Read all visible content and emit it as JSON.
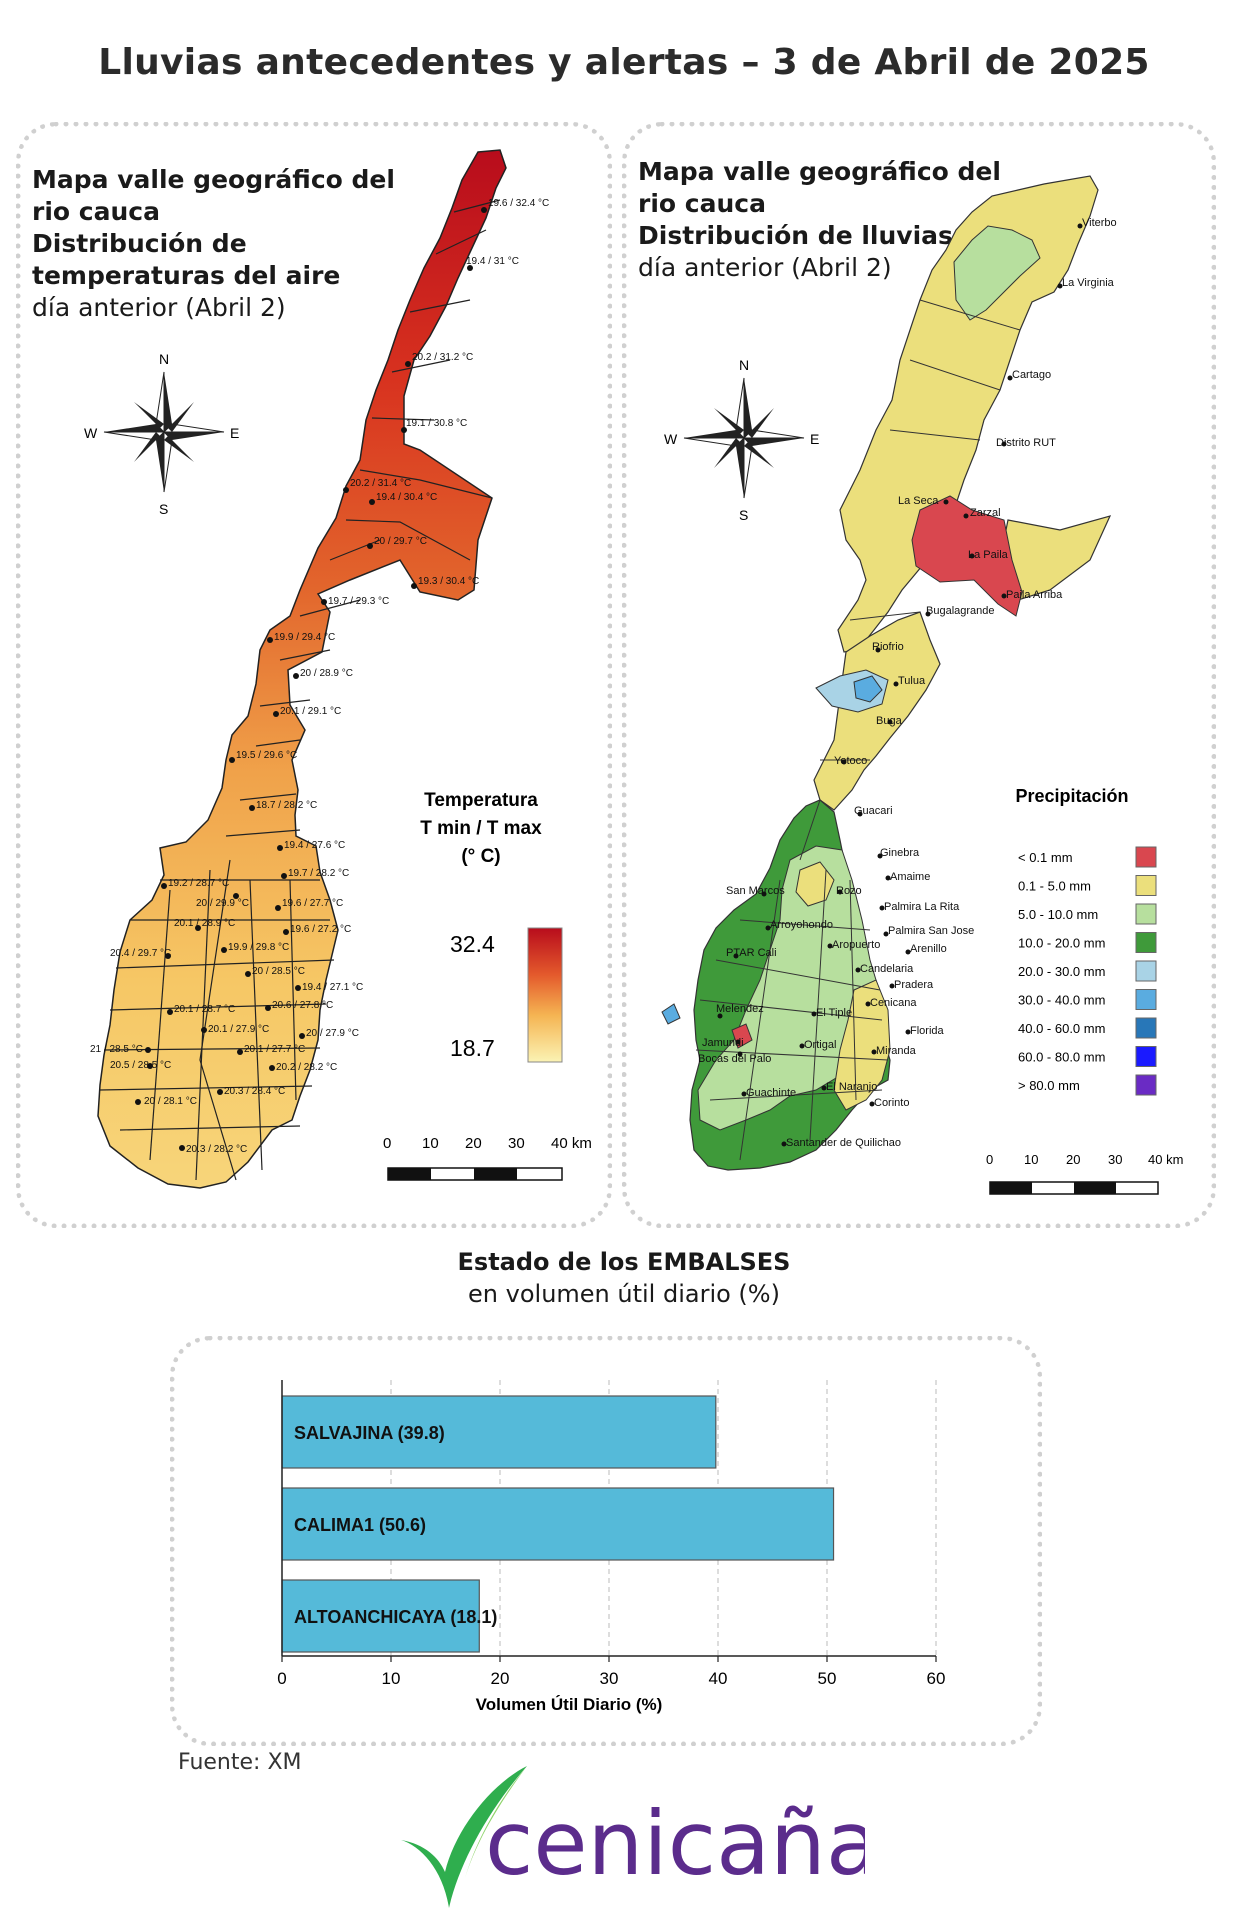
{
  "title": "Lluvias antecedentes y alertas – 3 de Abril de 2025",
  "temp_panel": {
    "line1": "Mapa valle geográfico del",
    "line2": "rio cauca",
    "line3": "Distribución de",
    "line4": "temperaturas del aire",
    "line5": "día anterior (Abril 2)",
    "legend_title_1": "Temperatura",
    "legend_title_2": "T min / T max",
    "legend_title_3": "(° C)",
    "legend_max": "32.4",
    "legend_min": "18.7",
    "scale_labels": [
      "0",
      "10",
      "20",
      "30",
      "40 km"
    ],
    "compass": {
      "n": "N",
      "s": "S",
      "e": "E",
      "w": "W"
    },
    "station_labels": [
      "19.6 / 32.4 °C",
      "19.4 / 31 °C",
      "20.2 / 31.2 °C",
      "19.1 / 30.8 °C",
      "20.2 / 31.4 °C",
      "19.4 / 30.4 °C",
      "20 / 29.7 °C",
      "19.3 / 30.4 °C",
      "19.7 / 29.3 °C",
      "19.9 / 29.4 °C",
      "20 / 28.9 °C",
      "20.1 / 29.1 °C",
      "19.5 / 29.6 °C",
      "18.7 / 28.2 °C",
      "19.4 / 27.6 °C",
      "19.7 / 28.2 °C",
      "19.2 / 28.7 °C",
      "20 / 29.9 °C",
      "19.6 / 27.7 °C",
      "20.1 / 28.9 °C",
      "19.6 / 27.2 °C",
      "20.4 / 29.7 °C",
      "19.9 / 29.8 °C",
      "20 / 28.5 °C",
      "19.4 / 27.1 °C",
      "20.1 / 28.7 °C",
      "20.6 / 27.8 °C",
      "20.1 / 27.9 °C",
      "20 / 27.9 °C",
      "21 / 28.5 °C",
      "20.1 / 27.7 °C",
      "20.5 / 28.5 °C",
      "20.2 / 28.2 °C",
      "20.3 / 28.4 °C",
      "20 / 28.1 °C",
      "20.3 / 28.2 °C"
    ]
  },
  "rain_panel": {
    "line1": "Mapa valle geográfico del",
    "line2": "rio cauca",
    "line3": "Distribución de lluvias",
    "line4": "día anterior (Abril 2)",
    "legend_title": "Precipitación",
    "legend": [
      {
        "label": "< 0.1 mm",
        "color": "#d9474f"
      },
      {
        "label": "0.1 - 5.0 mm",
        "color": "#ebdf7c"
      },
      {
        "label": "5.0 - 10.0 mm",
        "color": "#b7df9e"
      },
      {
        "label": "10.0 - 20.0 mm",
        "color": "#3f9a3a"
      },
      {
        "label": "20.0 - 30.0 mm",
        "color": "#a9d3e6"
      },
      {
        "label": "30.0 - 40.0 mm",
        "color": "#5aace0"
      },
      {
        "label": "40.0 - 60.0 mm",
        "color": "#2877b8"
      },
      {
        "label": "60.0 - 80.0 mm",
        "color": "#1a1aff"
      },
      {
        "label": "> 80.0 mm",
        "color": "#6a2bc4"
      }
    ],
    "scale_labels": [
      "0",
      "10",
      "20",
      "30",
      "40 km"
    ],
    "compass": {
      "n": "N",
      "s": "S",
      "e": "E",
      "w": "W"
    },
    "places": [
      "Viterbo",
      "La Virginia",
      "Cartago",
      "Distrito RUT",
      "La Seca",
      "Zarzal",
      "La Paila",
      "Paila Arriba",
      "Bugalagrande",
      "Riofrio",
      "Tulua",
      "Buga",
      "Yotoco",
      "Guacari",
      "Ginebra",
      "Amaime",
      "San Marcos",
      "Rozo",
      "Palmira La Rita",
      "Arroyohondo",
      "Palmira San Jose",
      "Aropuerto",
      "Arenillo",
      "PTAR Cali",
      "Candelaria",
      "Pradera",
      "Cenicana",
      "Melendez",
      "El Tiple",
      "Florida",
      "Jamundi",
      "Bocas del Palo",
      "Ortigal",
      "Miranda",
      "El Naranjo",
      "Guachinte",
      "Corinto",
      "Santander de Quilichao"
    ]
  },
  "chart_heading": {
    "line1": "Estado de los EMBALSES",
    "line2": "en volumen útil diario (%)"
  },
  "chart_data": {
    "type": "bar",
    "orientation": "horizontal",
    "categories": [
      "SALVAJINA (39.8)",
      "CALIMA1 (50.6)",
      "ALTOANCHICAYA (18.1)"
    ],
    "values": [
      39.8,
      50.6,
      18.1
    ],
    "xlabel": "Volumen Útil Diario (%)",
    "ylabel": "",
    "xlim": [
      0,
      60
    ],
    "xticks": [
      0,
      10,
      20,
      30,
      40,
      50,
      60
    ],
    "grid": true,
    "bar_color": "#55bad9"
  },
  "source": "Fuente: XM",
  "logo_text": "cenicaña",
  "colors": {
    "logo_purple": "#5b2c8c",
    "logo_green": "#2fae4e"
  }
}
